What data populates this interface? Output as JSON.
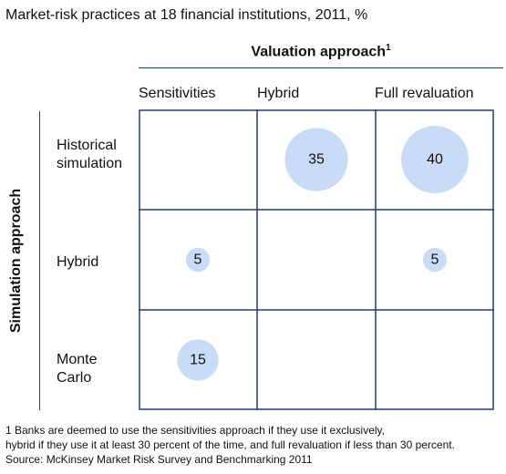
{
  "title": "Market-risk practices at 18 financial institutions, 2011, %",
  "footnotes": [
    "1 Banks are deemed to use the sensitivities approach if they use it exclusively,",
    "hybrid if they use it at least 30 percent of the time, and full revaluation if less than 30 percent.",
    "Source: McKinsey Market Risk Survey and Benchmarking 2011"
  ],
  "colors": {
    "grid": "#1f3a8a",
    "bubble": "#c9dcf7",
    "text": "#111111"
  },
  "chart_data": {
    "type": "bubble-matrix",
    "x_axis_title": "Valuation approach",
    "x_axis_title_footnote": "1",
    "y_axis_title": "Simulation approach",
    "columns": [
      "Sensitivities",
      "Hybrid",
      "Full revaluation"
    ],
    "rows": [
      "Historical\nsimulation",
      "Hybrid",
      "Monte\nCarlo"
    ],
    "cells": [
      {
        "row": 0,
        "col": 1,
        "value": 35
      },
      {
        "row": 0,
        "col": 2,
        "value": 40
      },
      {
        "row": 1,
        "col": 0,
        "value": 5
      },
      {
        "row": 1,
        "col": 2,
        "value": 5
      },
      {
        "row": 2,
        "col": 0,
        "value": 15
      }
    ]
  }
}
